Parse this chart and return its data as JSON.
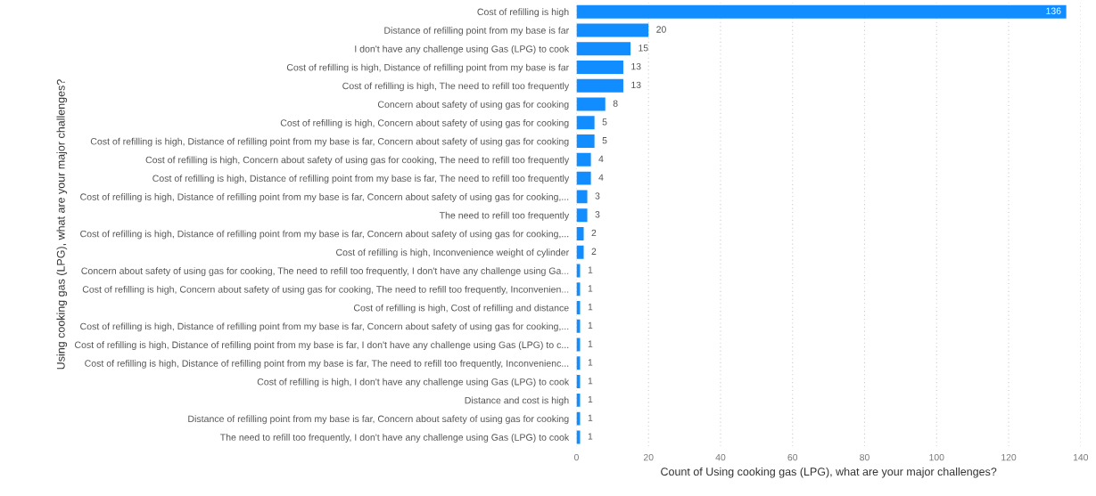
{
  "chart_data": {
    "type": "bar",
    "orientation": "horizontal",
    "xlabel": "Count of Using cooking gas (LPG), what are your major challenges?",
    "ylabel": "Using cooking gas (LPG), what are your major challenges?",
    "categories": [
      "Cost of refilling is high",
      "Distance of refilling point from my base is far",
      "I don't have any challenge using Gas (LPG) to cook",
      "Cost of refilling is high, Distance of refilling point from my base is far",
      "Cost of refilling is high, The need to refill too frequently",
      "Concern about safety of using gas for cooking",
      "Cost of refilling is high, Concern about safety of using gas for cooking",
      "Cost of refilling is high, Distance of refilling point from my base is far, Concern about safety of using gas for cooking",
      "Cost of refilling is high, Concern about safety of using gas for cooking, The need to refill too frequently",
      "Cost of refilling is high, Distance of refilling point from my base is far, The need to refill too frequently",
      "Cost of refilling is high, Distance of refilling point from my base is far, Concern about safety of using gas for cooking,...",
      "The need to refill too frequently",
      "Cost of refilling is high, Distance of refilling point from my base is far, Concern about safety of using gas for cooking,...",
      "Cost of refilling is high, Inconvenience weight of cylinder",
      "Concern about safety of using gas for cooking, The need to refill too frequently, I don't have any challenge using Ga...",
      "Cost of refilling is high, Concern about safety of using gas for cooking, The need to refill too frequently, Inconvenien...",
      "Cost of refilling is high, Cost of refilling and distance",
      "Cost of refilling is high, Distance of refilling point from my base is far, Concern about safety of using gas for cooking,...",
      "Cost of refilling is high, Distance of refilling point from my base is far, I don't have any challenge using Gas (LPG) to c...",
      "Cost of refilling is high, Distance of refilling point from my base is far, The need to refill too frequently, Inconvenienc...",
      "Cost of refilling is high, I don't have any challenge using Gas (LPG) to cook",
      "Distance and cost is high",
      "Distance of refilling point from my base is far, Concern about safety of using gas for cooking",
      "The need to refill too frequently, I don't have any challenge using Gas (LPG) to cook"
    ],
    "values": [
      136,
      20,
      15,
      13,
      13,
      8,
      5,
      5,
      4,
      4,
      3,
      3,
      2,
      2,
      1,
      1,
      1,
      1,
      1,
      1,
      1,
      1,
      1,
      1
    ],
    "color": "#118dff",
    "xlim": [
      0,
      140
    ],
    "xticks": [
      0,
      20,
      40,
      60,
      80,
      100,
      120,
      140
    ],
    "grid": "x",
    "data_labels": true
  }
}
